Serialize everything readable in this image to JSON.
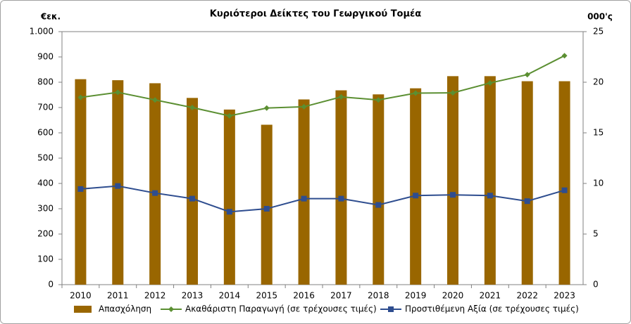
{
  "chart_data": {
    "type": "bar",
    "title": "Κυριότεροι Δείκτες του Γεωργικού Τομέα",
    "y_label": "€εκ.",
    "y2_label": "000'ς",
    "categories": [
      "2010",
      "2011",
      "2012",
      "2013",
      "2014",
      "2015",
      "2016",
      "2017",
      "2018",
      "2019",
      "2020",
      "2021",
      "2022",
      "2023"
    ],
    "series": [
      {
        "name": "Απασχόληση",
        "type": "bar",
        "axis": "y2",
        "color": "#996600",
        "values": [
          20.3,
          20.2,
          19.9,
          18.45,
          17.3,
          15.8,
          18.3,
          19.2,
          18.8,
          19.4,
          20.6,
          20.6,
          20.1,
          20.1
        ]
      },
      {
        "name": "Ακαθάριστη Παραγωγή (σε τρέχουσες τιμές)",
        "type": "line",
        "marker": "diamond",
        "color": "#5b8f32",
        "values": [
          740,
          760,
          730,
          700,
          667,
          698,
          703,
          742,
          730,
          757,
          758,
          797,
          830,
          905
        ]
      },
      {
        "name": "Προστιθέμενη Αξία (σε τρέχουσες τιμές)",
        "type": "line",
        "marker": "square",
        "color": "#2e4d8f",
        "values": [
          378,
          390,
          362,
          340,
          288,
          300,
          340,
          340,
          315,
          352,
          355,
          352,
          330,
          373
        ]
      }
    ],
    "ylim": [
      0,
      1000
    ],
    "yticks": [
      0,
      100,
      200,
      300,
      400,
      500,
      600,
      700,
      800,
      900,
      {
        "value": 1000,
        "label": "1.000"
      }
    ],
    "y2lim": [
      0,
      25
    ],
    "y2ticks": [
      0,
      5,
      10,
      15,
      20,
      25
    ],
    "legend": "bottom"
  }
}
